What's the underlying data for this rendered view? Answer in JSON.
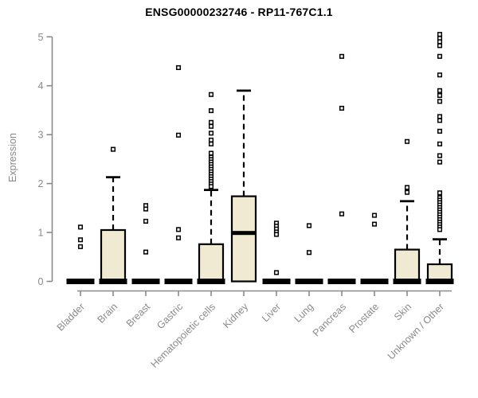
{
  "chart_data": {
    "type": "boxplot",
    "title": "ENSG00000232746 - RP11-767C1.1",
    "ylabel": "Expression",
    "xlabel": "",
    "ylim": [
      0,
      5
    ],
    "yticks": [
      0,
      1,
      2,
      3,
      4,
      5
    ],
    "grid": false,
    "legend": "none",
    "categories": [
      "Bladder",
      "Brain",
      "Breast",
      "Gastric",
      "Hematopoietic cells",
      "Kidney",
      "Liver",
      "Lung",
      "Pancreas",
      "Prostate",
      "Skin",
      "Unknown / Other"
    ],
    "series": [
      {
        "name": "Bladder",
        "collapsed": true,
        "q1": 0,
        "median": 0,
        "q3": 0,
        "whisker_high": 0,
        "outliers": [
          1.11,
          0.85,
          0.71
        ]
      },
      {
        "name": "Brain",
        "collapsed": false,
        "q1": 0,
        "median": 0,
        "q3": 1.05,
        "whisker_high": 2.13,
        "outliers": [
          2.7
        ]
      },
      {
        "name": "Breast",
        "collapsed": true,
        "q1": 0,
        "median": 0,
        "q3": 0,
        "whisker_high": 0,
        "outliers": [
          1.55,
          1.48,
          1.23,
          0.6
        ]
      },
      {
        "name": "Gastric",
        "collapsed": true,
        "q1": 0,
        "median": 0,
        "q3": 0,
        "whisker_high": 0,
        "outliers": [
          4.37,
          2.99,
          1.06,
          0.89
        ]
      },
      {
        "name": "Hematopoietic cells",
        "collapsed": false,
        "q1": 0,
        "median": 0,
        "q3": 0.76,
        "whisker_high": 1.87,
        "outliers": [
          3.82,
          3.49,
          3.25,
          3.17,
          3.03,
          2.89,
          2.81,
          2.62,
          2.54,
          2.49,
          2.44,
          2.39,
          2.34,
          2.29,
          2.24,
          2.19,
          2.14,
          2.09,
          2.04,
          1.99,
          1.94
        ]
      },
      {
        "name": "Kidney",
        "collapsed": false,
        "q1": 0,
        "median": 0.99,
        "q3": 1.74,
        "whisker_high": 3.9,
        "outliers": []
      },
      {
        "name": "Liver",
        "collapsed": true,
        "q1": 0,
        "median": 0,
        "q3": 0,
        "whisker_high": 0,
        "outliers": [
          1.19,
          1.13,
          1.07,
          1.01,
          0.96,
          0.18
        ]
      },
      {
        "name": "Lung",
        "collapsed": true,
        "q1": 0,
        "median": 0,
        "q3": 0,
        "whisker_high": 0,
        "outliers": [
          1.14,
          0.59
        ]
      },
      {
        "name": "Pancreas",
        "collapsed": true,
        "q1": 0,
        "median": 0,
        "q3": 0,
        "whisker_high": 0,
        "outliers": [
          4.6,
          3.54,
          1.38
        ]
      },
      {
        "name": "Prostate",
        "collapsed": true,
        "q1": 0,
        "median": 0,
        "q3": 0,
        "whisker_high": 0,
        "outliers": [
          1.35,
          1.17
        ]
      },
      {
        "name": "Skin",
        "collapsed": false,
        "q1": 0,
        "median": 0,
        "q3": 0.65,
        "whisker_high": 1.64,
        "outliers": [
          2.86,
          1.92,
          1.82
        ]
      },
      {
        "name": "Unknown / Other",
        "collapsed": false,
        "q1": 0,
        "median": 0,
        "q3": 0.35,
        "whisker_high": 0.86,
        "outliers": [
          5.05,
          4.97,
          4.9,
          4.82,
          4.6,
          4.22,
          3.9,
          3.8,
          3.68,
          3.37,
          3.29,
          3.07,
          2.81,
          2.57,
          2.44,
          1.81,
          1.71,
          1.66,
          1.61,
          1.56,
          1.51,
          1.46,
          1.41,
          1.36,
          1.31,
          1.26,
          1.21,
          1.16,
          1.11,
          1.06
        ]
      }
    ],
    "colors": {
      "box_fill": "#f1ead2",
      "box_stroke": "#000000",
      "median": "#000000",
      "axis": "#8a8a8a",
      "tick_label": "#8a8a8a",
      "title": "#000000",
      "outlier_stroke": "#000000",
      "outlier_fill": "#ffffff"
    }
  }
}
